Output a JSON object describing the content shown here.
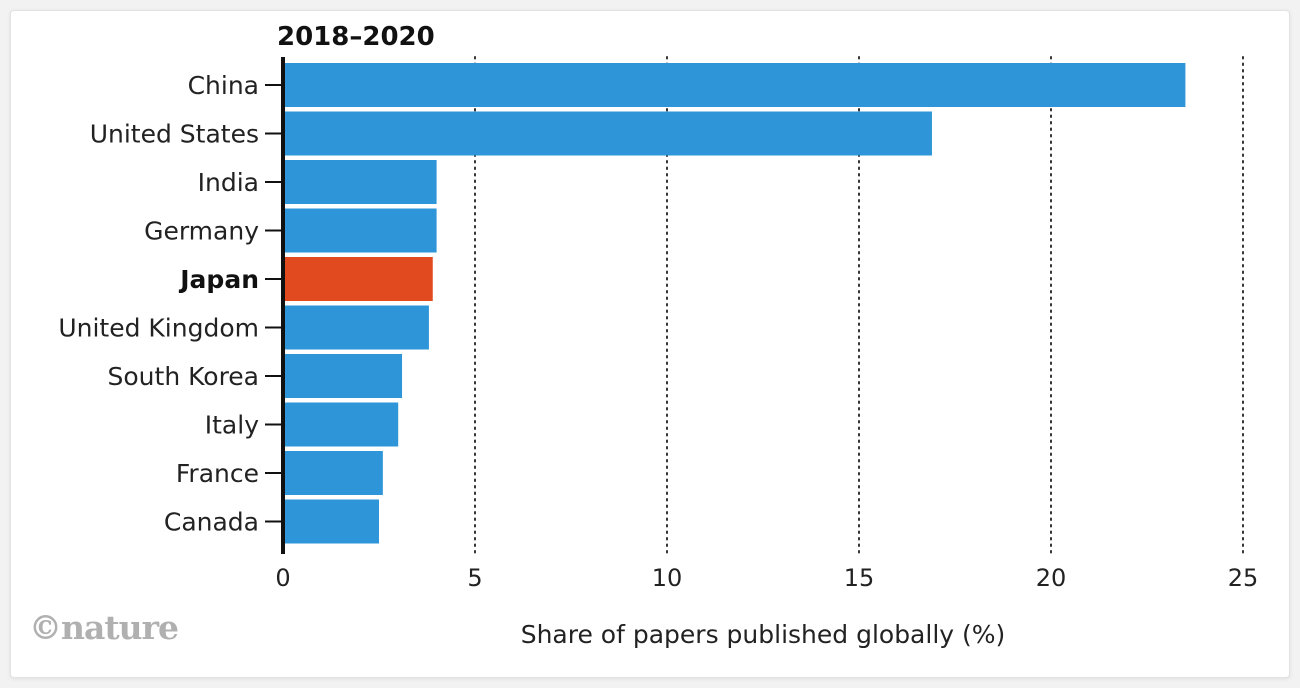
{
  "brand": {
    "logo_text": "©nature"
  },
  "chart_data": {
    "type": "bar",
    "orientation": "horizontal",
    "title": "2018–2020",
    "xlabel": "Share of papers published globally (%)",
    "ylabel": "",
    "xlim": [
      0,
      25
    ],
    "xticks": [
      0,
      5,
      10,
      15,
      20,
      25
    ],
    "grid": "vertical-dotted",
    "categories": [
      "China",
      "United States",
      "India",
      "Germany",
      "Japan",
      "United Kingdom",
      "South Korea",
      "Italy",
      "France",
      "Canada"
    ],
    "values": [
      23.5,
      16.9,
      4.0,
      4.0,
      3.9,
      3.8,
      3.1,
      3.0,
      2.6,
      2.5
    ],
    "highlight": "Japan",
    "colors": {
      "bar": "#2e96d8",
      "highlight": "#e04a1e",
      "axis": "#111111",
      "grid": "#333333"
    }
  }
}
